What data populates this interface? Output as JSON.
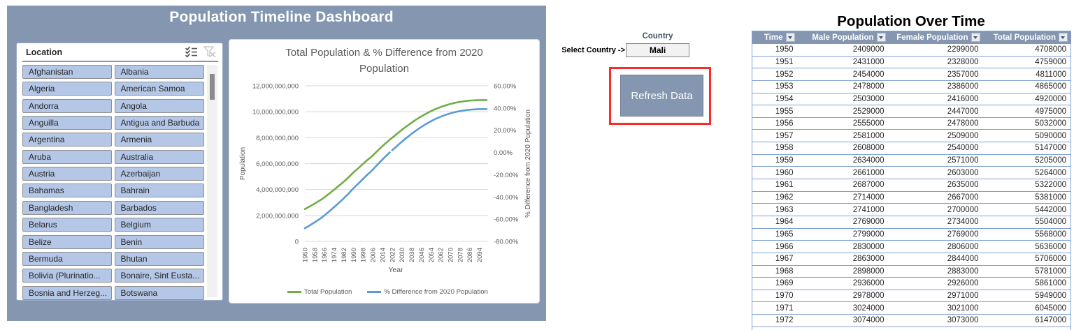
{
  "dashboard": {
    "title": "Population Timeline Dashboard"
  },
  "slicer": {
    "header": "Location",
    "multi_select_icon": "multi-select-icon",
    "clear_filter_icon": "clear-filter-icon",
    "items": [
      "Afghanistan",
      "Albania",
      "Algeria",
      "American Samoa",
      "Andorra",
      "Angola",
      "Anguilla",
      "Antigua and Barbuda",
      "Argentina",
      "Armenia",
      "Aruba",
      "Australia",
      "Austria",
      "Azerbaijan",
      "Bahamas",
      "Bahrain",
      "Bangladesh",
      "Barbados",
      "Belarus",
      "Belgium",
      "Belize",
      "Benin",
      "Bermuda",
      "Bhutan",
      "Bolivia (Plurinatio...",
      "Bonaire, Sint Eusta...",
      "Bosnia and Herzeg...",
      "Botswana"
    ]
  },
  "chart_data": {
    "type": "line",
    "title": "Total Population & % Difference from 2020 Population",
    "title_lines": [
      "Total Population & % Difference from 2020",
      "Population"
    ],
    "xlabel": "Year",
    "ylabel_left": "Population",
    "ylabel_right": "% Difference from 2020 Population",
    "y_left_ticks": [
      "0",
      "2,000,000,000",
      "4,000,000,000",
      "6,000,000,000",
      "8,000,000,000",
      "10,000,000,000",
      "12,000,000,000"
    ],
    "y_left_range": [
      0,
      12000000000
    ],
    "y_right_ticks": [
      "-80.00%",
      "-60.00%",
      "-40.00%",
      "-20.00%",
      "0.00%",
      "20.00%",
      "40.00%",
      "60.00%"
    ],
    "y_right_range": [
      -80,
      60
    ],
    "x_ticks": [
      1950,
      1958,
      1966,
      1974,
      1982,
      1990,
      1998,
      2006,
      2014,
      2022,
      2030,
      2038,
      2046,
      2054,
      2062,
      2070,
      2078,
      2086,
      2094
    ],
    "x_range": [
      1950,
      2100
    ],
    "grid": true,
    "legend_position": "bottom",
    "x": [
      1950,
      1952,
      1954,
      1956,
      1958,
      1960,
      1962,
      1964,
      1966,
      1968,
      1970,
      1972,
      1974,
      1976,
      1978,
      1980,
      1982,
      1984,
      1986,
      1988,
      1990,
      1992,
      1994,
      1996,
      1998,
      2000,
      2002,
      2004,
      2006,
      2008,
      2010,
      2012,
      2014,
      2016,
      2018,
      2020,
      2022,
      2024,
      2026,
      2028,
      2030,
      2032,
      2034,
      2036,
      2038,
      2040,
      2042,
      2044,
      2046,
      2048,
      2050,
      2052,
      2054,
      2056,
      2058,
      2060,
      2062,
      2064,
      2066,
      2068,
      2070,
      2072,
      2074,
      2076,
      2078,
      2080,
      2082,
      2084,
      2086,
      2088,
      2090,
      2092,
      2094,
      2096,
      2098,
      2100
    ],
    "series": [
      {
        "name": "Total Population",
        "axis": "left",
        "color": "#70AD47",
        "values": [
          2490000000,
          2593000000,
          2697000000,
          2803000000,
          2909000000,
          3020000000,
          3135000000,
          3256000000,
          3388000000,
          3532000000,
          3680000000,
          3826000000,
          3975000000,
          4126000000,
          4282000000,
          4440000000,
          4600000000,
          4765000000,
          4939000000,
          5127000000,
          5310000000,
          5476000000,
          5638000000,
          5805000000,
          5980000000,
          6150000000,
          6306000000,
          6459000000,
          6626000000,
          6808000000,
          6990000000,
          7168000000,
          7344000000,
          7514000000,
          7680000000,
          7840000000,
          7994000000,
          8144000000,
          8296000000,
          8450000000,
          8600000000,
          8743000000,
          8882000000,
          9018000000,
          9151000000,
          9280000000,
          9404000000,
          9522000000,
          9636000000,
          9746000000,
          9850000000,
          9950000000,
          10045000000,
          10133000000,
          10214000000,
          10290000000,
          10362000000,
          10429000000,
          10490000000,
          10548000000,
          10600000000,
          10648000000,
          10691000000,
          10728000000,
          10761000000,
          10790000000,
          10817000000,
          10841000000,
          10857000000,
          10870000000,
          10880000000,
          10890000000,
          10899000000,
          10900000000,
          10900000000,
          10900000000
        ]
      },
      {
        "name": "% Difference from 2020 Population",
        "axis": "right",
        "color": "#5B9BD5",
        "dash_segment": [
          2018,
          2022
        ],
        "values": [
          -68.24,
          -66.93,
          -65.6,
          -64.25,
          -62.9,
          -61.48,
          -60.01,
          -58.47,
          -56.79,
          -54.95,
          -53.06,
          -51.2,
          -49.3,
          -47.37,
          -45.38,
          -43.37,
          -41.33,
          -39.22,
          -37.0,
          -34.6,
          -32.27,
          -30.15,
          -28.09,
          -25.96,
          -23.72,
          -21.56,
          -19.57,
          -17.61,
          -15.48,
          -13.16,
          -10.84,
          -8.57,
          -6.33,
          -4.16,
          -2.04,
          0.0,
          1.96,
          3.88,
          5.82,
          7.78,
          9.69,
          11.52,
          13.29,
          15.03,
          16.72,
          18.37,
          19.95,
          21.45,
          22.91,
          24.31,
          25.64,
          26.91,
          28.12,
          29.25,
          30.28,
          31.25,
          32.17,
          33.02,
          33.8,
          34.54,
          35.2,
          35.82,
          36.36,
          36.84,
          37.26,
          37.63,
          37.97,
          38.28,
          38.48,
          38.65,
          38.78,
          38.9,
          39.02,
          39.03,
          39.03,
          39.03
        ]
      }
    ]
  },
  "selector": {
    "column_header": "Country",
    "label": "Select Country ->",
    "value": "Mali"
  },
  "refresh_button": {
    "label": "Refresh Data"
  },
  "table": {
    "title": "Population Over Time",
    "columns": [
      "Time",
      "Male Population",
      "Female Population",
      "Total Population"
    ],
    "rows": [
      [
        1950,
        2409000,
        2299000,
        4708000
      ],
      [
        1951,
        2431000,
        2328000,
        4759000
      ],
      [
        1952,
        2454000,
        2357000,
        4811000
      ],
      [
        1953,
        2478000,
        2386000,
        4865000
      ],
      [
        1954,
        2503000,
        2416000,
        4920000
      ],
      [
        1955,
        2529000,
        2447000,
        4975000
      ],
      [
        1956,
        2555000,
        2478000,
        5032000
      ],
      [
        1957,
        2581000,
        2509000,
        5090000
      ],
      [
        1958,
        2608000,
        2540000,
        5147000
      ],
      [
        1959,
        2634000,
        2571000,
        5205000
      ],
      [
        1960,
        2661000,
        2603000,
        5264000
      ],
      [
        1961,
        2687000,
        2635000,
        5322000
      ],
      [
        1962,
        2714000,
        2667000,
        5381000
      ],
      [
        1963,
        2741000,
        2700000,
        5442000
      ],
      [
        1964,
        2769000,
        2734000,
        5504000
      ],
      [
        1965,
        2799000,
        2769000,
        5568000
      ],
      [
        1966,
        2830000,
        2806000,
        5636000
      ],
      [
        1967,
        2863000,
        2844000,
        5706000
      ],
      [
        1968,
        2898000,
        2883000,
        5781000
      ],
      [
        1969,
        2936000,
        2926000,
        5861000
      ],
      [
        1970,
        2978000,
        2971000,
        5949000
      ],
      [
        1971,
        3024000,
        3021000,
        6045000
      ],
      [
        1972,
        3074000,
        3073000,
        6147000
      ]
    ]
  },
  "colors": {
    "panel": "#8496B0",
    "slicer_item": "#B4C7E7",
    "series_green": "#70AD47",
    "series_blue": "#5B9BD5",
    "table_border": "#7EA1D1",
    "highlight_red": "#FB2B2B",
    "grid": "#D9D9D9",
    "axis_text": "#595959"
  }
}
